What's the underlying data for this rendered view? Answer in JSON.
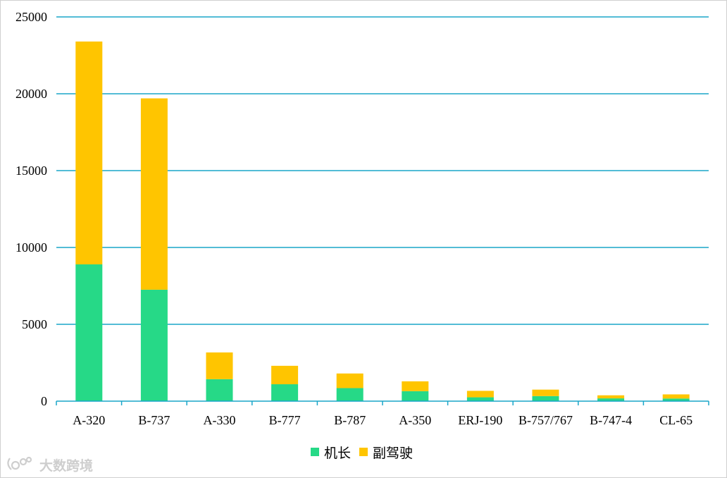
{
  "chart_data": {
    "type": "bar",
    "stacked": true,
    "categories": [
      "A-320",
      "B-737",
      "A-330",
      "B-777",
      "B-787",
      "A-350",
      "ERJ-190",
      "B-757/767",
      "B-747-4",
      "CL-65"
    ],
    "series": [
      {
        "name": "机长",
        "color": "#26d987",
        "values": [
          8900,
          7250,
          1430,
          1100,
          850,
          650,
          250,
          330,
          180,
          170
        ]
      },
      {
        "name": "副驾驶",
        "color": "#ffc500",
        "values": [
          14500,
          12450,
          1740,
          1200,
          950,
          640,
          420,
          420,
          200,
          270
        ]
      }
    ],
    "yticks": [
      "0",
      "5000",
      "10000",
      "15000",
      "20000",
      "25000"
    ],
    "ylim": [
      0,
      25000
    ],
    "grid": true,
    "grid_color": "#1aa6c9",
    "axis_color": "#1aa6c9",
    "legend": "bottom-center",
    "title": "",
    "xlabel": "",
    "ylabel": ""
  },
  "watermark": {
    "text": "大数跨境"
  }
}
